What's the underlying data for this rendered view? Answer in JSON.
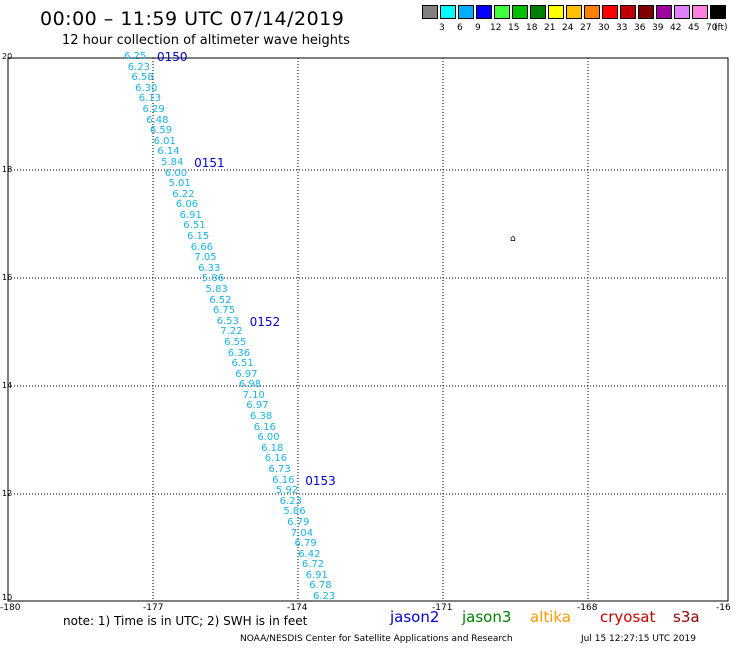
{
  "title": "00:00 – 11:59 UTC 07/14/2019",
  "subtitle": "12 hour collection of altimeter wave heights",
  "legend": {
    "labels": [
      "3",
      "6",
      "9",
      "12",
      "15",
      "18",
      "21",
      "24",
      "27",
      "30",
      "33",
      "36",
      "39",
      "42",
      "45",
      "70"
    ],
    "unit": "(ft)",
    "colors": [
      "#808080",
      "#00ffff",
      "#00b0ff",
      "#0000ff",
      "#40ff40",
      "#00c000",
      "#008000",
      "#ffff00",
      "#ffc000",
      "#ff8000",
      "#ff0000",
      "#c00000",
      "#800000",
      "#a000a0",
      "#e080ff",
      "#ff80e0",
      "#000000"
    ]
  },
  "map": {
    "y_labels": [
      "20",
      "18",
      "16",
      "14",
      "12",
      "10"
    ],
    "x_labels": [
      "-180",
      "-177",
      "-174",
      "-171",
      "-168",
      "-16"
    ],
    "island_symbol": "⌂"
  },
  "track": {
    "color": "#17b4e6",
    "swh_values": [
      "6.25",
      "6.23",
      "6.58",
      "6.30",
      "6.13",
      "6.29",
      "6.48",
      "6.59",
      "6.01",
      "6.14",
      "5.84",
      "6.00",
      "5.01",
      "6.22",
      "6.06",
      "6.91",
      "6.51",
      "6.15",
      "6.66",
      "7.05",
      "6.33",
      "5.86",
      "5.83",
      "6.52",
      "6.75",
      "6.53",
      "7.22",
      "6.55",
      "6.36",
      "6.51",
      "6.97",
      "6.98",
      "7.10",
      "6.97",
      "6.38",
      "6.16",
      "6.00",
      "6.18",
      "6.16",
      "6.73",
      "6.16",
      "5.92",
      "6.23",
      "5.86",
      "6.79",
      "7.04",
      "6.79",
      "6.42",
      "6.72",
      "6.91",
      "6.78",
      "6.23"
    ],
    "time_labels": [
      {
        "text": "0150",
        "after_index": 0
      },
      {
        "text": "0151",
        "after_index": 10
      },
      {
        "text": "0152",
        "after_index": 25
      },
      {
        "text": "0153",
        "after_index": 40
      }
    ]
  },
  "note": "note:  1) Time is in UTC;  2) SWH is in feet",
  "satellites": [
    {
      "name": "jason2",
      "color": "#0000cc"
    },
    {
      "name": "jason3",
      "color": "#008000"
    },
    {
      "name": "altika",
      "color": "#ff9900"
    },
    {
      "name": "cryosat",
      "color": "#cc0000"
    },
    {
      "name": "s3a",
      "color": "#990000"
    }
  ],
  "footer": {
    "credit": "NOAA/NESDIS Center for Satellite Applications and Research",
    "timestamp": "Jul 15 12:27:15 UTC 2019"
  }
}
